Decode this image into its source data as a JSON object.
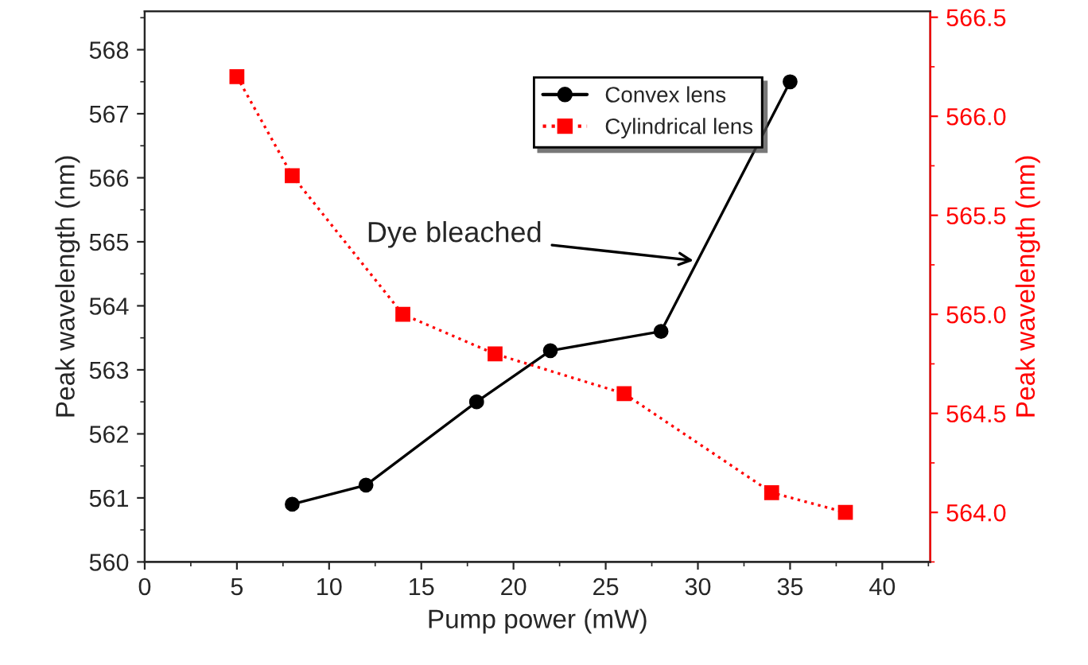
{
  "chart_data": {
    "type": "line",
    "xlabel": "Pump power (mW)",
    "ylabel": "Peak wavelength (nm)",
    "y2label": "Peak wavelength (nm)",
    "xlim": [
      0,
      42.6
    ],
    "xticks": [
      0,
      5,
      10,
      15,
      20,
      25,
      30,
      35,
      40
    ],
    "ylim": [
      560,
      568.6
    ],
    "yticks": [
      560,
      561,
      562,
      563,
      564,
      565,
      566,
      567,
      568
    ],
    "y2lim": [
      563.75,
      566.53
    ],
    "y2ticks": [
      {
        "value": 564,
        "label": "564.0"
      },
      {
        "value": 564.5,
        "label": "564.5"
      },
      {
        "value": 565,
        "label": "565.0"
      },
      {
        "value": 565.5,
        "label": "565.5"
      },
      {
        "value": 566,
        "label": "566.0"
      },
      {
        "value": 566.5,
        "label": "566.5"
      }
    ],
    "legend": "top right",
    "grid": false,
    "series": [
      {
        "name": "Convex lens",
        "color": "#000000",
        "marker": "circle",
        "line_style": "solid",
        "x": [
          8,
          12,
          18,
          22,
          28,
          35
        ],
        "values": [
          560.9,
          561.2,
          562.5,
          563.3,
          563.6,
          567.5
        ]
      },
      {
        "name": "Cylindrical lens",
        "color": "#ff0000",
        "marker": "square",
        "line_style": "dotted",
        "axis": "y2",
        "x": [
          5,
          8,
          14,
          19,
          26,
          34,
          38
        ],
        "values": [
          566.2,
          565.7,
          565.0,
          564.8,
          564.6,
          564.1,
          564.0
        ]
      }
    ],
    "annotations": [
      {
        "text": "Dye bleached",
        "x": 30,
        "y": 564.7
      }
    ]
  }
}
